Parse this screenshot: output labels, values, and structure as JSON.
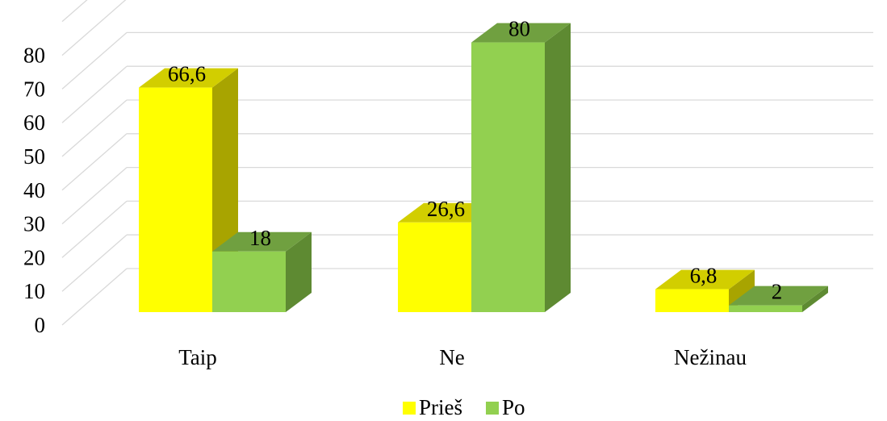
{
  "chart_data": {
    "type": "bar",
    "categories": [
      "Taip",
      "Ne",
      "Nežinau"
    ],
    "series": [
      {
        "name": "Prieš",
        "values": [
          66.6,
          26.6,
          6.8
        ],
        "labels": [
          "66,6",
          "26,6",
          "6,8"
        ],
        "color": "#FFFF00",
        "top_color": "#D2CE00",
        "side_color": "#A8A400"
      },
      {
        "name": "Po",
        "values": [
          18,
          80,
          2
        ],
        "labels": [
          "18",
          "80",
          "2"
        ],
        "color": "#92D050",
        "top_color": "#70A040",
        "side_color": "#5E8A32"
      }
    ],
    "yticks": [
      "0",
      "10",
      "20",
      "30",
      "40",
      "50",
      "60",
      "70",
      "80"
    ],
    "ylim": [
      0,
      90
    ],
    "grid": true,
    "legend_position": "bottom",
    "three_d": true
  }
}
